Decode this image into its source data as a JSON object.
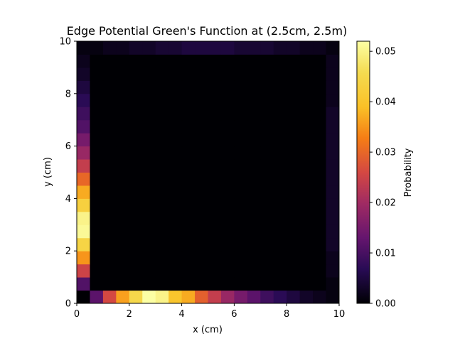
{
  "chart_data": {
    "type": "heatmap",
    "title": "Edge Potential Green's Function at (2.5cm, 2.5m)",
    "xlabel": "x (cm)",
    "ylabel": "y (cm)",
    "xlim": [
      0,
      10
    ],
    "ylim": [
      0,
      10
    ],
    "grid_size": 20,
    "cell_width_cm": 0.5,
    "x_ticks": [
      "0",
      "2",
      "4",
      "6",
      "8",
      "10"
    ],
    "y_ticks": [
      "0",
      "2",
      "4",
      "6",
      "8",
      "10"
    ],
    "colormap": "inferno",
    "colorbar": {
      "label": "Probability",
      "range": [
        0,
        0.052
      ],
      "ticks": [
        "0.00",
        "0.01",
        "0.02",
        "0.03",
        "0.04",
        "0.05"
      ]
    },
    "edges": {
      "bottom": [
        0.0,
        0.012,
        0.026,
        0.036,
        0.045,
        0.052,
        0.05,
        0.04,
        0.037,
        0.029,
        0.024,
        0.019,
        0.015,
        0.012,
        0.009,
        0.007,
        0.005,
        0.003,
        0.002,
        0.001
      ],
      "left": [
        0.0,
        0.011,
        0.025,
        0.035,
        0.044,
        0.051,
        0.05,
        0.043,
        0.037,
        0.03,
        0.024,
        0.019,
        0.015,
        0.011,
        0.009,
        0.007,
        0.005,
        0.003,
        0.002,
        0.001
      ],
      "top": [
        0.001,
        0.001,
        0.002,
        0.002,
        0.003,
        0.003,
        0.004,
        0.004,
        0.005,
        0.005,
        0.005,
        0.005,
        0.004,
        0.004,
        0.004,
        0.003,
        0.003,
        0.002,
        0.002,
        0.001
      ],
      "right": [
        0.001,
        0.001,
        0.002,
        0.002,
        0.003,
        0.003,
        0.003,
        0.003,
        0.003,
        0.003,
        0.003,
        0.003,
        0.003,
        0.003,
        0.003,
        0.002,
        0.002,
        0.002,
        0.002,
        0.001
      ]
    },
    "interior_value": 0.0,
    "colors": {
      "interior": "#000004"
    }
  }
}
